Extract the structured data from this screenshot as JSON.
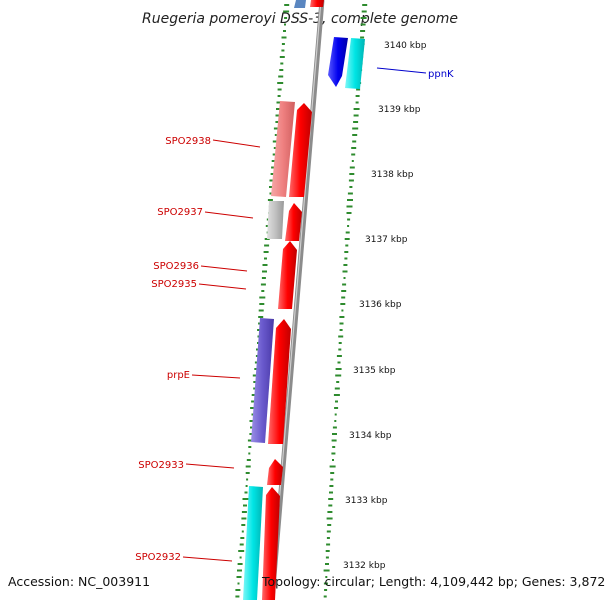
{
  "title": "Ruegeria pomeroyi DSS-3, complete genome",
  "footer": {
    "accession": "Accession: NC_003911",
    "topology": "Topology: circular; Length: 4,109,442 bp; Genes: 3,872"
  },
  "ticks": [
    "3140 kbp",
    "3139 kbp",
    "3138 kbp",
    "3137 kbp",
    "3136 kbp",
    "3135 kbp",
    "3134 kbp",
    "3133 kbp",
    "3132 kbp"
  ],
  "gene_labels": [
    "ppnK",
    "SPO2938",
    "SPO2937",
    "SPO2936",
    "SPO2935",
    "prpE",
    "SPO2933",
    "SPO2932"
  ],
  "colors": {
    "backbone": "#8c8c8c",
    "gc_dots": "#2e8b2e",
    "forward_cds": "#ff0000",
    "reverse_cds_light": "#f08080",
    "label_red": "#cc0000",
    "label_blue": "#0000cc",
    "cyan_feature": "#00e5e5",
    "blue_feature": "#0000ee",
    "purple_feature": "#6a5acd",
    "grey_feature": "#c0c0c0"
  }
}
